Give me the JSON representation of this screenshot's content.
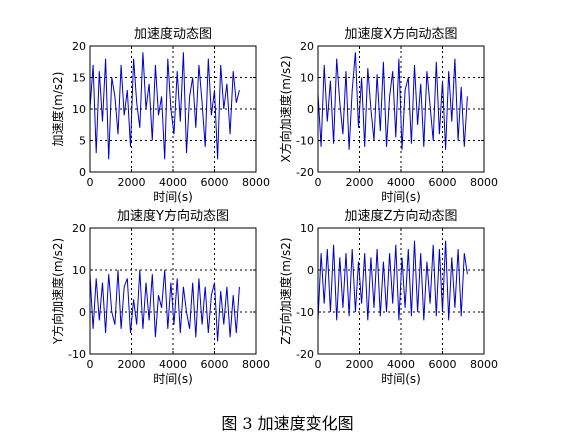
{
  "caption": "图 3 加速度变化图",
  "colors": {
    "series": "#0000cc",
    "axis": "#000000",
    "grid": "#000000"
  },
  "chart_data": [
    {
      "type": "line",
      "title": "加速度动态图",
      "xlabel": "时间(s)",
      "ylabel": "加速度(m/s2)",
      "xlim": [
        0,
        8000
      ],
      "ylim": [
        0,
        20
      ],
      "xticks": [
        0,
        2000,
        4000,
        6000,
        8000
      ],
      "yticks": [
        0,
        5,
        10,
        15,
        20
      ],
      "grid": true,
      "series": [
        {
          "x": [
            0,
            150,
            300,
            450,
            600,
            750,
            900,
            1050,
            1200,
            1350,
            1500,
            1650,
            1800,
            1950,
            2100,
            2250,
            2400,
            2550,
            2700,
            2850,
            3000,
            3150,
            3300,
            3450,
            3600,
            3750,
            3900,
            4050,
            4200,
            4350,
            4500,
            4650,
            4800,
            4950,
            5100,
            5250,
            5400,
            5550,
            5700,
            5850,
            6000,
            6150,
            6300,
            6450,
            6600,
            6750,
            6900,
            7050,
            7200
          ],
          "y": [
            10,
            17,
            3,
            16,
            8,
            18,
            2,
            15,
            12,
            6,
            17,
            9,
            13,
            4,
            18,
            11,
            7,
            19,
            10,
            14,
            5,
            17,
            9,
            12,
            2,
            18,
            10,
            6,
            16,
            8,
            19,
            3,
            12,
            15,
            7,
            17,
            11,
            4,
            18,
            9,
            13,
            2,
            17,
            10,
            14,
            6,
            16,
            11,
            13
          ]
        }
      ]
    },
    {
      "type": "line",
      "title": "加速度X方向动态图",
      "xlabel": "时间(s)",
      "ylabel": "X方向加速度(m/s2)",
      "xlim": [
        0,
        8000
      ],
      "ylim": [
        -20,
        20
      ],
      "xticks": [
        0,
        2000,
        4000,
        6000,
        8000
      ],
      "yticks": [
        -20,
        -10,
        0,
        10,
        20
      ],
      "grid": true,
      "series": [
        {
          "x": [
            0,
            150,
            300,
            450,
            600,
            750,
            900,
            1050,
            1200,
            1350,
            1500,
            1650,
            1800,
            1950,
            2100,
            2250,
            2400,
            2550,
            2700,
            2850,
            3000,
            3150,
            3300,
            3450,
            3600,
            3750,
            3900,
            4050,
            4200,
            4350,
            4500,
            4650,
            4800,
            4950,
            5100,
            5250,
            5400,
            5550,
            5700,
            5850,
            6000,
            6150,
            6300,
            6450,
            6600,
            6750,
            6900,
            7050,
            7200
          ],
          "y": [
            5,
            -12,
            14,
            -4,
            9,
            -11,
            16,
            2,
            -8,
            12,
            -13,
            6,
            18,
            -6,
            10,
            -12,
            13,
            0,
            -10,
            11,
            -7,
            15,
            -12,
            4,
            12,
            -9,
            16,
            -13,
            6,
            10,
            -11,
            14,
            -5,
            8,
            -12,
            12,
            1,
            -10,
            15,
            -8,
            9,
            -13,
            12,
            -4,
            16,
            -10,
            7,
            -12,
            4
          ]
        }
      ]
    },
    {
      "type": "line",
      "title": "加速度Y方向动态图",
      "xlabel": "时间(s)",
      "ylabel": "Y方向加速度(m/s2)",
      "xlim": [
        0,
        8000
      ],
      "ylim": [
        -10,
        20
      ],
      "xticks": [
        0,
        2000,
        4000,
        6000,
        8000
      ],
      "yticks": [
        -10,
        0,
        10,
        20
      ],
      "grid": true,
      "series": [
        {
          "x": [
            0,
            150,
            300,
            450,
            600,
            750,
            900,
            1050,
            1200,
            1350,
            1500,
            1650,
            1800,
            1950,
            2100,
            2250,
            2400,
            2550,
            2700,
            2850,
            3000,
            3150,
            3300,
            3450,
            3600,
            3750,
            3900,
            4050,
            4200,
            4350,
            4500,
            4650,
            4800,
            4950,
            5100,
            5250,
            5400,
            5550,
            5700,
            5850,
            6000,
            6150,
            6300,
            6450,
            6600,
            6750,
            6900,
            7050,
            7200
          ],
          "y": [
            9,
            -4,
            8,
            -2,
            7,
            -5,
            9,
            0,
            -3,
            10,
            -4,
            6,
            8,
            -5,
            3,
            -3,
            10,
            -4,
            7,
            -2,
            9,
            -6,
            4,
            1,
            10,
            -4,
            7,
            -3,
            8,
            -5,
            6,
            0,
            -4,
            7,
            -6,
            8,
            -3,
            6,
            -5,
            4,
            7,
            -7,
            5,
            -3,
            6,
            -6,
            4,
            -5,
            6
          ]
        }
      ]
    },
    {
      "type": "line",
      "title": "加速度Z方向动态图",
      "xlabel": "时间(s)",
      "ylabel": "Z方向加速度(m/s2)",
      "xlim": [
        0,
        8000
      ],
      "ylim": [
        -20,
        10
      ],
      "xticks": [
        0,
        2000,
        4000,
        6000,
        8000
      ],
      "yticks": [
        -20,
        -10,
        0,
        10
      ],
      "grid": true,
      "series": [
        {
          "x": [
            0,
            150,
            300,
            450,
            600,
            750,
            900,
            1050,
            1200,
            1350,
            1500,
            1650,
            1800,
            1950,
            2100,
            2250,
            2400,
            2550,
            2700,
            2850,
            3000,
            3150,
            3300,
            3450,
            3600,
            3750,
            3900,
            4050,
            4200,
            4350,
            4500,
            4650,
            4800,
            4950,
            5100,
            5250,
            5400,
            5550,
            5700,
            5850,
            6000,
            6150,
            6300,
            6450,
            6600,
            6750,
            6900,
            7050,
            7200
          ],
          "y": [
            -12,
            4,
            -8,
            5,
            -10,
            6,
            -12,
            3,
            -9,
            4,
            -11,
            5,
            -10,
            2,
            -8,
            4,
            -12,
            3,
            -9,
            5,
            -11,
            2,
            -10,
            4,
            -8,
            6,
            -12,
            3,
            -9,
            5,
            -11,
            7,
            -10,
            4,
            -12,
            2,
            -8,
            6,
            -11,
            5,
            -10,
            7,
            -12,
            3,
            -9,
            5,
            -11,
            4,
            -1
          ]
        }
      ]
    }
  ]
}
